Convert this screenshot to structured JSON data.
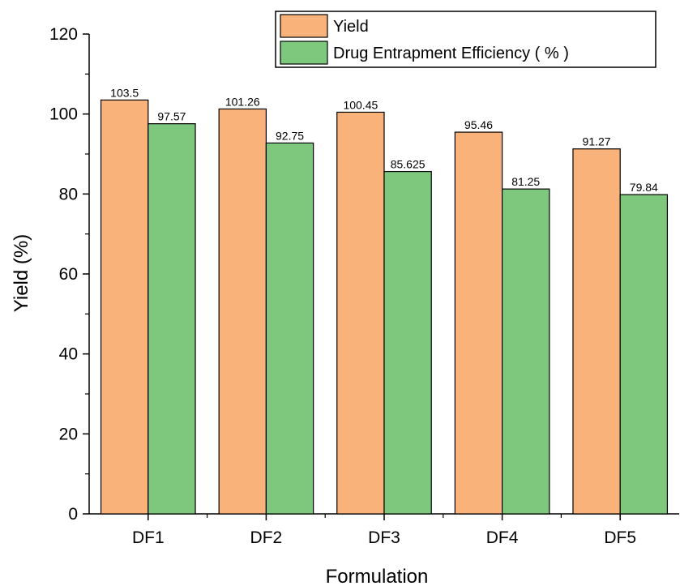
{
  "chart_data": {
    "type": "bar",
    "categories": [
      "DF1",
      "DF2",
      "DF3",
      "DF4",
      "DF5"
    ],
    "series": [
      {
        "name": "Yield",
        "color": "#f8b27a",
        "values": [
          103.5,
          101.26,
          100.45,
          95.46,
          91.27
        ],
        "value_labels": [
          "103.5",
          "101.26",
          "100.45",
          "95.46",
          "91.27"
        ]
      },
      {
        "name": "Drug Entrapment Efficiency ( % )",
        "color": "#7ec87e",
        "values": [
          97.57,
          92.75,
          85.625,
          81.25,
          79.84
        ],
        "value_labels": [
          "97.57",
          "92.75",
          "85.625",
          "81.25",
          "79.84"
        ]
      }
    ],
    "xlabel": "Formulation",
    "ylabel": "Yield (%)",
    "ylim": [
      0,
      120
    ],
    "yticks": [
      "0",
      "20",
      "40",
      "60",
      "80",
      "100",
      "120"
    ],
    "grid": false,
    "legend_position": "top-right"
  }
}
